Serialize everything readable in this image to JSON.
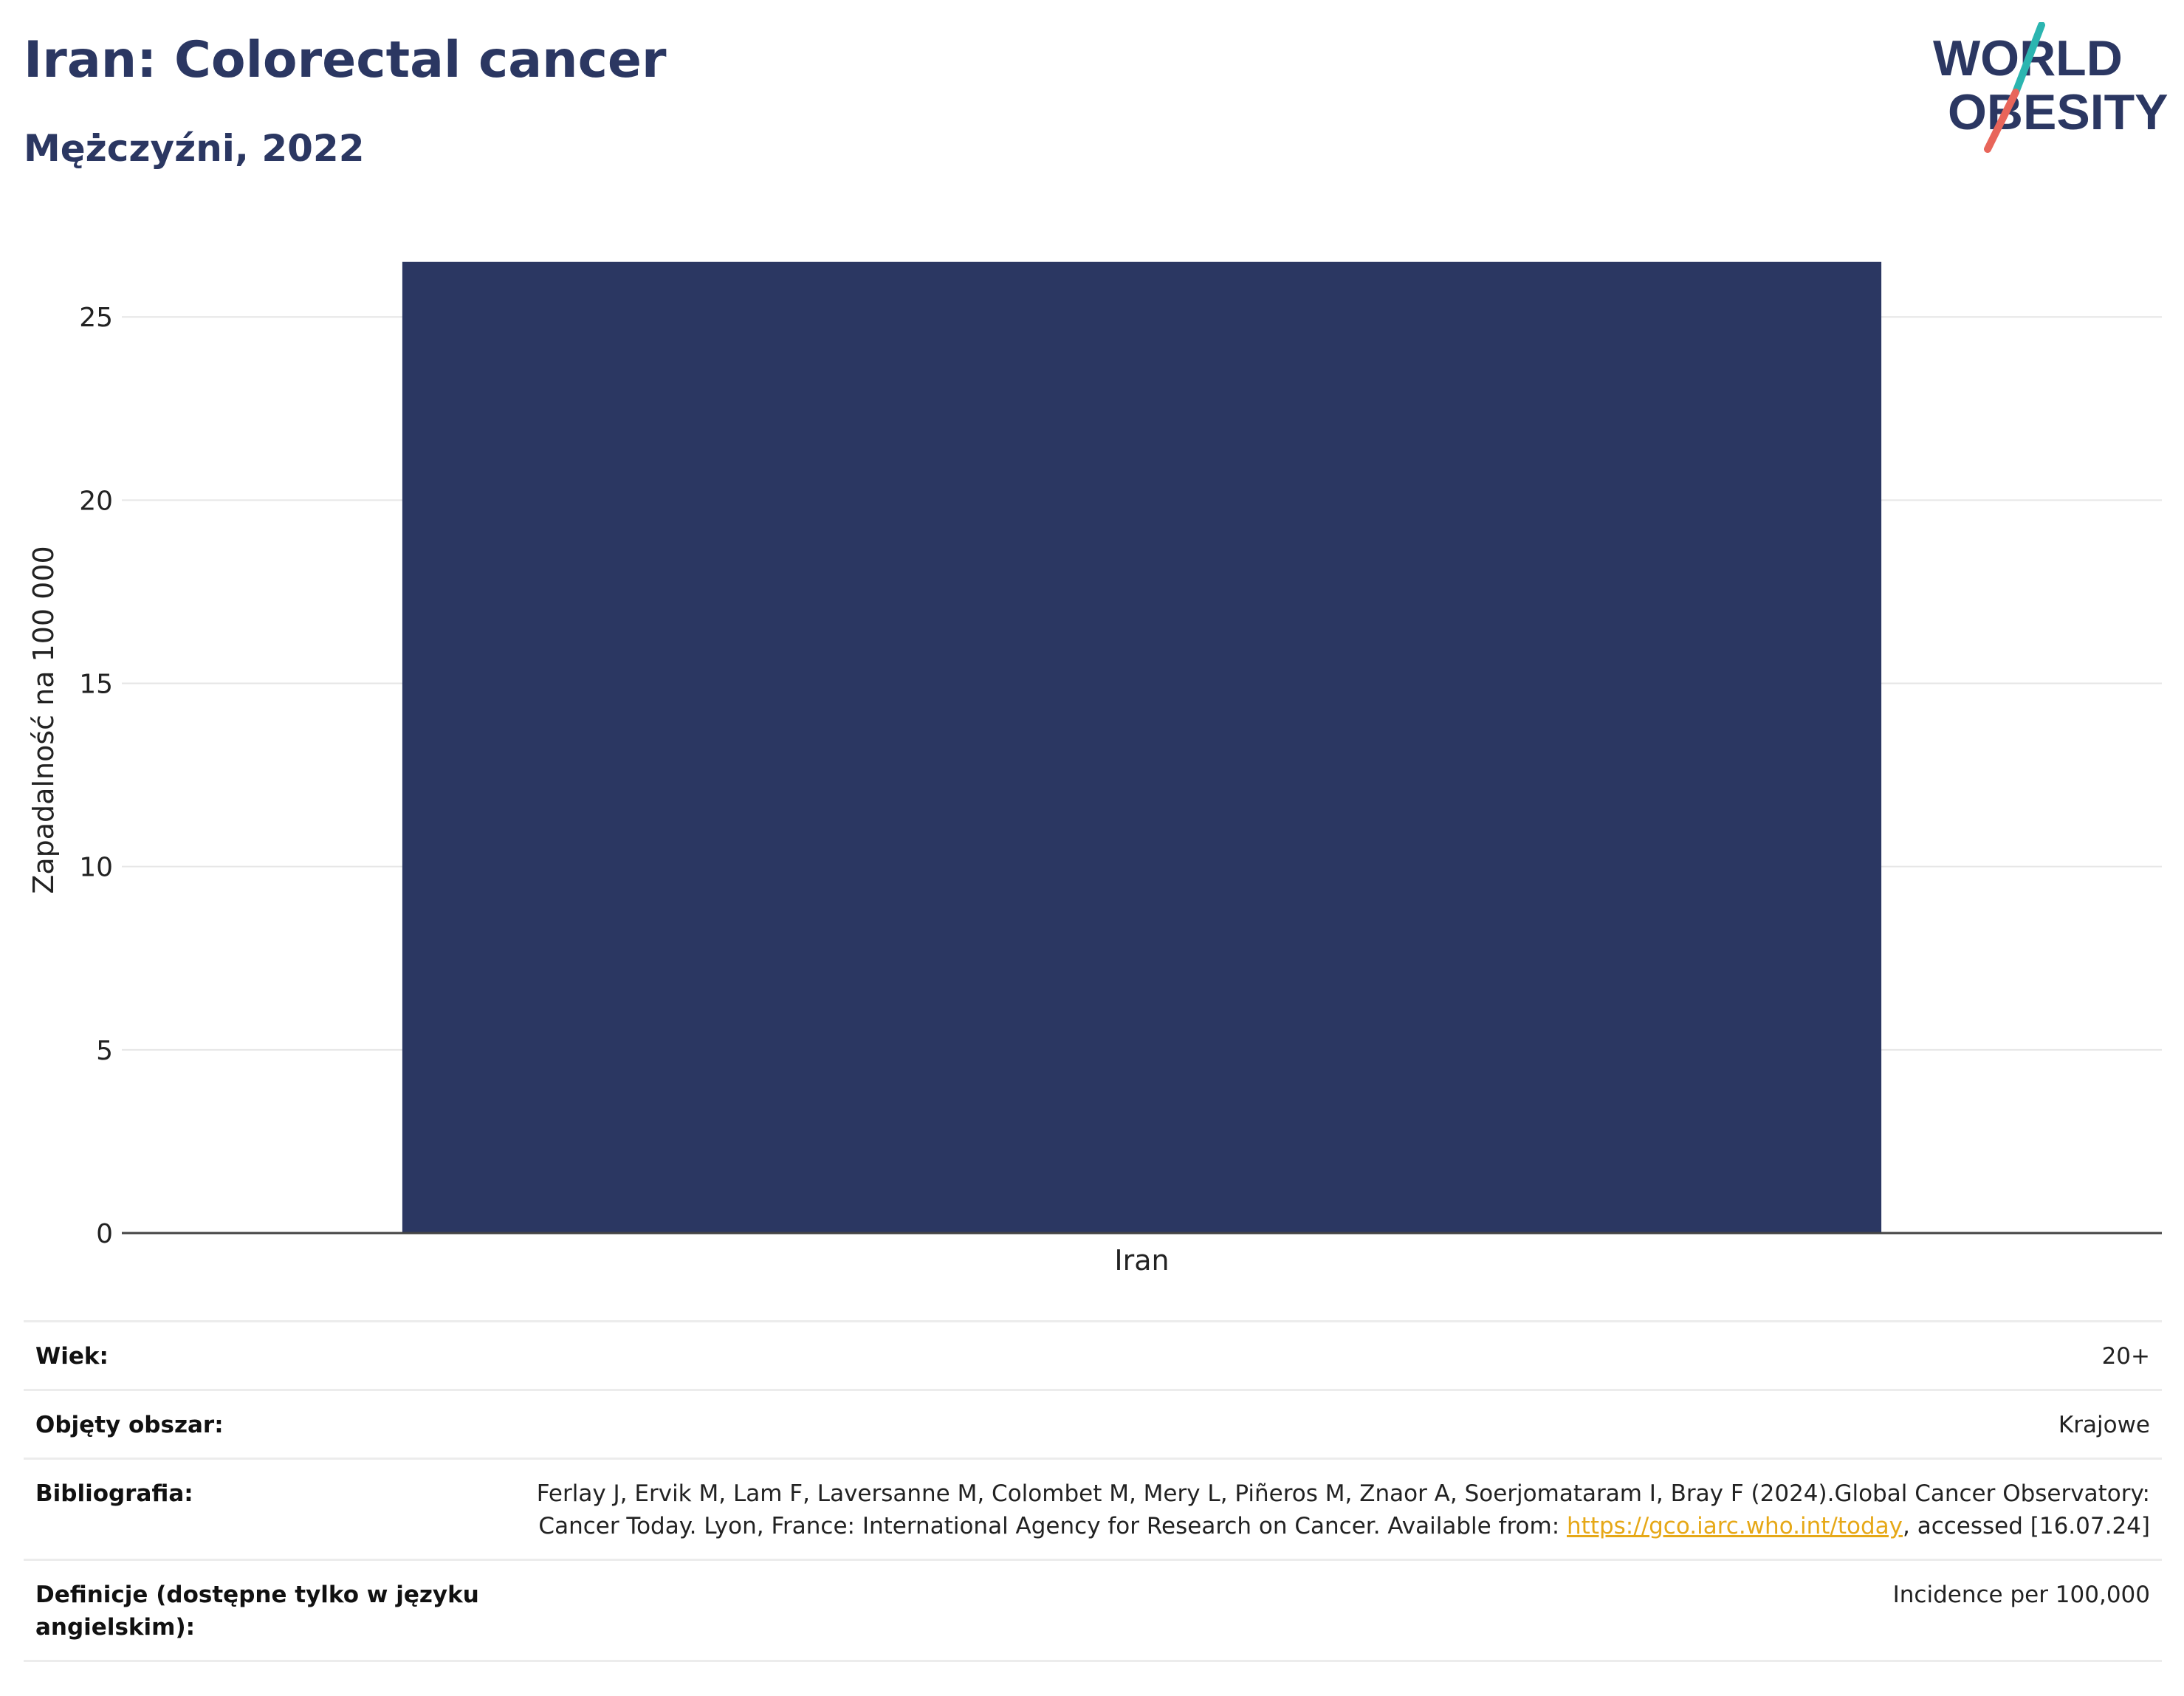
{
  "header": {
    "title": "Iran: Colorectal cancer",
    "subtitle": "Mężczyźni, 2022"
  },
  "logo": {
    "line1": "WORLD",
    "line2": "OBESITY",
    "color_text": "#2b3762",
    "color_slash_top": "#2bb5b0",
    "color_slash_bottom": "#e8655a"
  },
  "chart_data": {
    "type": "bar",
    "categories": [
      "Iran"
    ],
    "values": [
      26.5
    ],
    "title": "Iran: Colorectal cancer",
    "subtitle": "Mężczyźni, 2022",
    "xlabel": "",
    "ylabel": "Zapadalność na 100 000",
    "ylim": [
      0,
      27.2
    ],
    "yticks": [
      0,
      5,
      10,
      15,
      20,
      25
    ],
    "grid": true,
    "legend": "none",
    "bar_color": "#2b3762"
  },
  "meta": {
    "age_label": "Wiek:",
    "age_value": "20+",
    "area_label": "Objęty obszar:",
    "area_value": "Krajowe",
    "biblio_label": "Bibliografia:",
    "biblio_text_1": "Ferlay J, Ervik M, Lam F, Laversanne M, Colombet M, Mery L, Piñeros M, Znaor A, Soerjomataram I, Bray F (2024).Global Cancer Observatory: Cancer Today. Lyon, France: International Agency for Research on Cancer. Available from: ",
    "biblio_link": "https://gco.iarc.who.int/today",
    "biblio_text_2": ", accessed [16.07.24]",
    "def_label": "Definicje (dostępne tylko w języku angielskim):",
    "def_value": "Incidence per 100,000"
  }
}
